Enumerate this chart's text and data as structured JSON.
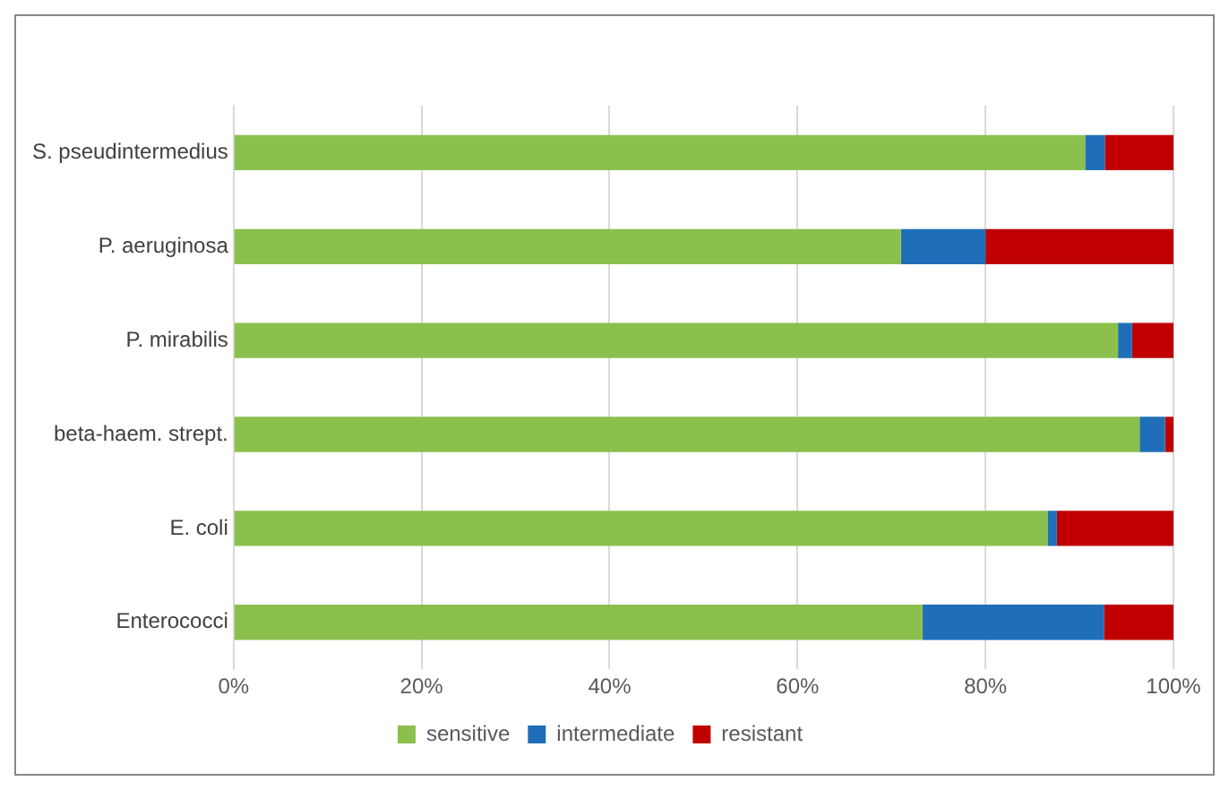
{
  "chart_data": {
    "type": "bar",
    "orientation": "horizontal",
    "stacked": true,
    "categories": [
      "S. pseudintermedius",
      "P. aeruginosa",
      "P. mirabilis",
      "beta-haem. strept.",
      "E. coli",
      "Enterococci"
    ],
    "series": [
      {
        "name": "sensitive",
        "color": "#8bc04c",
        "values": [
          90.6,
          71,
          94.1,
          96.4,
          86.6,
          73.3
        ]
      },
      {
        "name": "intermediate",
        "color": "#1f6fb8",
        "values": [
          2.1,
          9,
          1.5,
          2.7,
          1,
          19.3
        ]
      },
      {
        "name": "resistant",
        "color": "#c00000",
        "values": [
          7.3,
          20,
          4.4,
          0.9,
          12.4,
          7.4
        ]
      }
    ],
    "xlim": [
      0,
      100
    ],
    "xticks": [
      {
        "value": 0,
        "label": "0%"
      },
      {
        "value": 20,
        "label": "20%"
      },
      {
        "value": 40,
        "label": "40%"
      },
      {
        "value": 60,
        "label": "60%"
      },
      {
        "value": 80,
        "label": "80%"
      },
      {
        "value": 100,
        "label": "100%"
      }
    ],
    "grid": "x",
    "legend": "bottom"
  }
}
